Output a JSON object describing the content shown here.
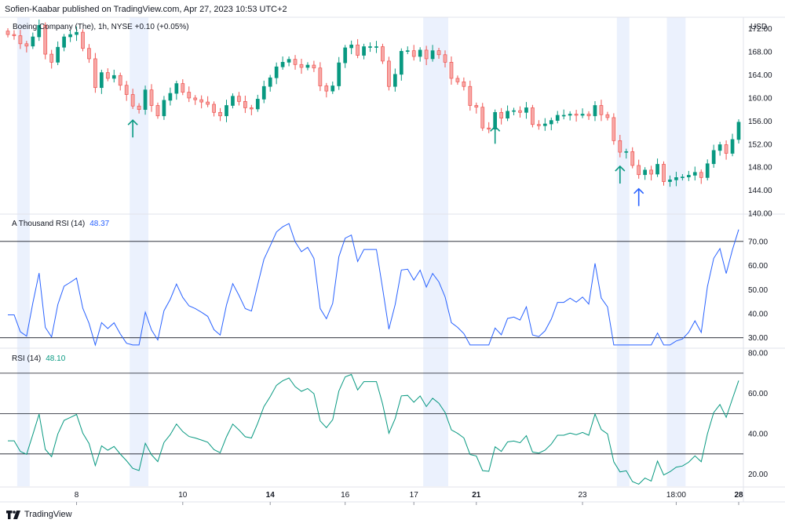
{
  "header": {
    "publish_line": "Sofien-Kaabar published on TradingView.com, Apr 27, 2023 10:53 UTC+2"
  },
  "price_pane": {
    "legend": "Boeing Company (The), 1h, NYSE  +0.10 (+0.05%)",
    "currency": "USD"
  },
  "indicator_panes": [
    {
      "name": "A Thousand RSI (14)",
      "value": "48.37"
    },
    {
      "name": "RSI (14)",
      "value": "48.10"
    }
  ],
  "footer": {
    "brand": "TradingView"
  },
  "colors": {
    "up": "#26a69a",
    "up_body": "#089981",
    "down": "#ef5350",
    "down_body": "#f7a9a7",
    "athousand_line": "#2962ff",
    "rsi_line": "#089981",
    "session_shade": "#dde7fc",
    "grid": "#e0e3eb",
    "level_line": "#131722",
    "signal_up": "#089981",
    "signal_blue": "#2962ff"
  },
  "chart_data": [
    {
      "type": "candlestick",
      "title": "Boeing Company (The), 1h, NYSE",
      "ylabel": "USD",
      "ylim": [
        140,
        174
      ],
      "yticks": [
        "172.00",
        "168.00",
        "164.00",
        "160.00",
        "156.00",
        "152.00",
        "148.00",
        "144.00",
        "140.00"
      ],
      "xticks": [
        "8",
        "10",
        "14",
        "16",
        "17",
        "21",
        "23",
        "18:00",
        "28"
      ],
      "closes": [
        171.0,
        170.8,
        169.4,
        169.0,
        170.6,
        172.6,
        167.6,
        166.2,
        168.8,
        170.6,
        171.0,
        171.4,
        168.6,
        166.8,
        161.8,
        164.4,
        163.4,
        163.9,
        162.2,
        160.6,
        158.6,
        158.0,
        161.4,
        158.7,
        156.9,
        159.6,
        160.8,
        162.5,
        161.0,
        160.0,
        159.7,
        159.3,
        158.9,
        157.5,
        156.9,
        158.7,
        160.3,
        159.4,
        158.3,
        158.1,
        159.8,
        162.0,
        163.5,
        165.4,
        166.2,
        166.7,
        165.8,
        165.3,
        165.7,
        165.2,
        162.1,
        161.2,
        162.1,
        166.1,
        168.7,
        169.2,
        167.4,
        168.9,
        168.9,
        168.9,
        166.4,
        162.0,
        164.1,
        168.1,
        168.2,
        167.2,
        168.3,
        166.8,
        168.2,
        167.5,
        166.2,
        163.4,
        162.8,
        162.0,
        158.7,
        158.4,
        154.8,
        154.6,
        157.5,
        156.5,
        157.7,
        157.8,
        157.5,
        158.3,
        155.4,
        155.2,
        155.5,
        156.1,
        157.0,
        157.0,
        157.2,
        157.0,
        157.2,
        156.9,
        158.7,
        157.1,
        156.6,
        152.6,
        150.6,
        150.7,
        148.3,
        146.7,
        147.5,
        146.8,
        148.5,
        145.5,
        145.8,
        146.2,
        146.3,
        146.6,
        147.1,
        146.2,
        148.6,
        150.9,
        151.9,
        150.4,
        152.8,
        155.8
      ],
      "series": [
        {
          "name": "A Thousand RSI (14)",
          "last": 48.37,
          "levels": [
            30,
            70
          ],
          "ylim": [
            26,
            81
          ],
          "yticks": [
            "70.00",
            "60.00",
            "50.00",
            "40.00",
            "30.00"
          ]
        },
        {
          "name": "RSI (14)",
          "last": 48.1,
          "levels": [
            30,
            50,
            70
          ],
          "ylim": [
            14,
            82
          ],
          "yticks": [
            "80.00",
            "60.00",
            "40.00",
            "20.00"
          ]
        }
      ],
      "signals": [
        {
          "type": "bullish",
          "color": "green",
          "bar": 20
        },
        {
          "type": "bullish",
          "color": "green",
          "bar": 78
        },
        {
          "type": "bullish",
          "color": "green",
          "bar": 98
        },
        {
          "type": "bullish",
          "color": "blue",
          "bar": 101
        }
      ]
    }
  ]
}
